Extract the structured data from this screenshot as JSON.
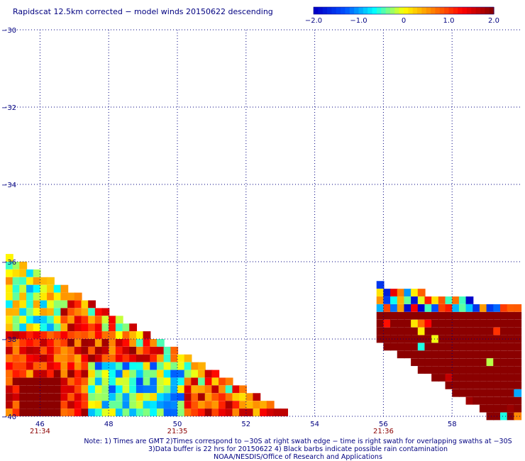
{
  "title": "Rapidscat 12.5km corrected − model winds 20150622 descending",
  "colorbar": {
    "min": -2.0,
    "max": 2.0,
    "labels": [
      "−2.0",
      "−1.0",
      "0",
      "1.0",
      "2.0"
    ],
    "colors": [
      "#0000c8",
      "#0050ff",
      "#00ffff",
      "#ffff00",
      "#ff8000",
      "#ff0000",
      "#8b0000"
    ]
  },
  "chart_data": {
    "type": "heatmap",
    "xlabel": "",
    "ylabel": "",
    "xlim": [
      45,
      60
    ],
    "ylim": [
      -40,
      -30
    ],
    "grid": true,
    "x_ticks": [
      "46",
      "48",
      "50",
      "52",
      "54",
      "56",
      "58"
    ],
    "y_ticks": [
      "−30",
      "−32",
      "−34",
      "−36",
      "−38",
      "−40"
    ],
    "time_labels": [
      {
        "x": 46,
        "text": "21:34"
      },
      {
        "x": 50,
        "text": "21:35"
      },
      {
        "x": 56,
        "text": "21:36"
      }
    ],
    "swaths": [
      {
        "name": "",
        "lon_range": [
          45.0,
          53.3
        ],
        "lat_range": [
          -40,
          -35.8
        ],
        "edge": "upper-right diagonal",
        "values_range": [
          -2.0,
          2.0
        ]
      },
      {
        "name": "",
        "lon_range": [
          55.8,
          60.0
        ],
        "lat_range": [
          -40,
          -36.5
        ],
        "edge": "diagonal strip",
        "values_range": [
          -2.0,
          2.0
        ]
      }
    ]
  },
  "notes": [
    "Note: 1) Times are GMT 2)Times correspond to −30S at right swath edge − time is right swath for overlapping swaths at −30S",
    "3)Data buffer is 22 hrs for 20150622 4) Black barbs indicate possible rain contamination",
    "NOAA/NESDIS/Office of Research and Applications"
  ]
}
